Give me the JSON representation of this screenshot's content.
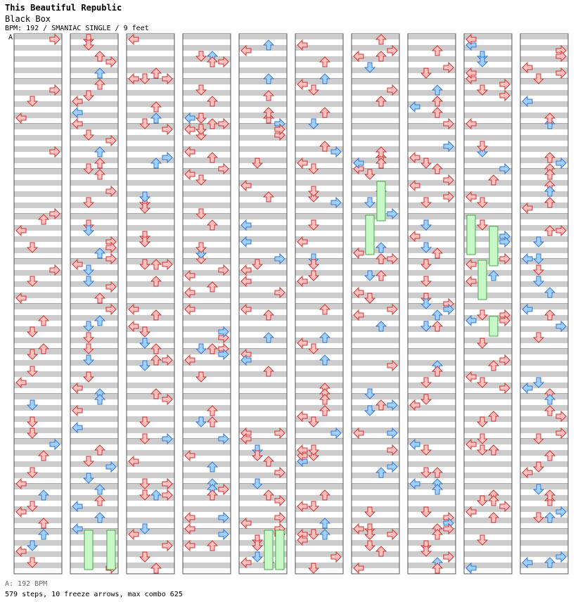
{
  "header": {
    "song_title": "This Beautiful Republic",
    "chart_title": "Black Box",
    "meta": "BPM: 192 / SMANIAC SINGLE / 9 feet"
  },
  "marker": "A",
  "footer": {
    "bpm_line": "A: 192 BPM",
    "summary": "579 steps, 10 freeze arrows, max combo 625"
  },
  "colors": {
    "red_fill": "#ffc0c0",
    "red_stroke": "#cc3333",
    "blue_fill": "#a0d0ff",
    "blue_stroke": "#3377cc",
    "freeze_fill": "#c8f8c8",
    "freeze_stroke": "#44aa44",
    "band": "#cccccc"
  },
  "chart_data": {
    "type": "stepchart",
    "columns": 10,
    "measures_per_column": 12,
    "lanes": [
      "left",
      "down",
      "up",
      "right"
    ],
    "note_grid": "quarter and eighth notes (red=quarter, blue=eighth)",
    "steps": 579,
    "freeze_arrows": 10,
    "max_combo": 625,
    "bpm": 192,
    "columns_notes": [
      [
        [
          0,
          3,
          1
        ],
        [
          1,
          1,
          1
        ],
        [
          1,
          0,
          1
        ],
        [
          1,
          3,
          1
        ],
        [
          2,
          3,
          1
        ],
        [
          3,
          3,
          1
        ],
        [
          4,
          0,
          1
        ],
        [
          4,
          1,
          1
        ],
        [
          4,
          2,
          1
        ],
        [
          5,
          1,
          1
        ],
        [
          5,
          0,
          1
        ],
        [
          5,
          3,
          1
        ],
        [
          6,
          1,
          1
        ],
        [
          6,
          2,
          1
        ],
        [
          6,
          2,
          1
        ],
        [
          7,
          0,
          1
        ],
        [
          7,
          1,
          1
        ],
        [
          7,
          1,
          1
        ],
        [
          8,
          1,
          1
        ],
        [
          8,
          1,
          2
        ],
        [
          8,
          1,
          1
        ],
        [
          9,
          0,
          1
        ],
        [
          9,
          2,
          1
        ],
        [
          9,
          1,
          1
        ],
        [
          9,
          3,
          2
        ],
        [
          10,
          1,
          1
        ],
        [
          10,
          2,
          1
        ],
        [
          10,
          2,
          2
        ],
        [
          10,
          0,
          1
        ],
        [
          11,
          0,
          1
        ],
        [
          11,
          1,
          2
        ],
        [
          11,
          1,
          1
        ],
        [
          11,
          2,
          2
        ],
        [
          11,
          0,
          1
        ]
      ],
      [
        [
          0,
          1,
          1
        ],
        [
          0,
          2,
          1
        ],
        [
          0,
          2,
          2
        ],
        [
          0,
          1,
          1
        ],
        [
          0,
          3,
          1
        ],
        [
          1,
          0,
          1
        ],
        [
          1,
          1,
          1
        ],
        [
          1,
          0,
          2
        ],
        [
          1,
          2,
          1
        ],
        [
          1,
          0,
          1
        ],
        [
          2,
          2,
          1
        ],
        [
          2,
          1,
          1
        ],
        [
          2,
          2,
          2
        ],
        [
          2,
          1,
          1
        ],
        [
          2,
          3,
          1
        ],
        [
          3,
          1,
          1
        ],
        [
          3,
          2,
          1
        ],
        [
          3,
          3,
          1
        ],
        [
          4,
          2,
          2
        ],
        [
          4,
          1,
          1
        ],
        [
          4,
          3,
          1
        ],
        [
          4,
          3,
          1
        ],
        [
          4,
          1,
          2
        ],
        [
          4,
          3,
          1
        ],
        [
          5,
          0,
          1
        ],
        [
          5,
          1,
          2
        ],
        [
          5,
          2,
          1
        ],
        [
          5,
          1,
          2
        ],
        [
          5,
          3,
          1
        ],
        [
          6,
          1,
          1
        ],
        [
          6,
          2,
          2
        ],
        [
          6,
          1,
          1
        ],
        [
          6,
          3,
          1
        ],
        [
          6,
          1,
          2
        ],
        [
          7,
          0,
          1
        ],
        [
          7,
          1,
          2
        ],
        [
          7,
          1,
          1
        ],
        [
          7,
          2,
          2
        ],
        [
          8,
          0,
          1
        ],
        [
          8,
          0,
          2
        ],
        [
          8,
          2,
          2
        ],
        [
          9,
          1,
          1
        ],
        [
          9,
          1,
          2
        ],
        [
          9,
          2,
          1
        ],
        [
          9,
          3,
          2
        ],
        [
          10,
          0,
          2
        ],
        [
          10,
          2,
          1
        ],
        [
          10,
          2,
          2
        ],
        [
          10,
          2,
          2
        ],
        [
          10,
          0,
          2
        ],
        [
          11,
          3,
          1
        ]
      ]
    ]
  }
}
